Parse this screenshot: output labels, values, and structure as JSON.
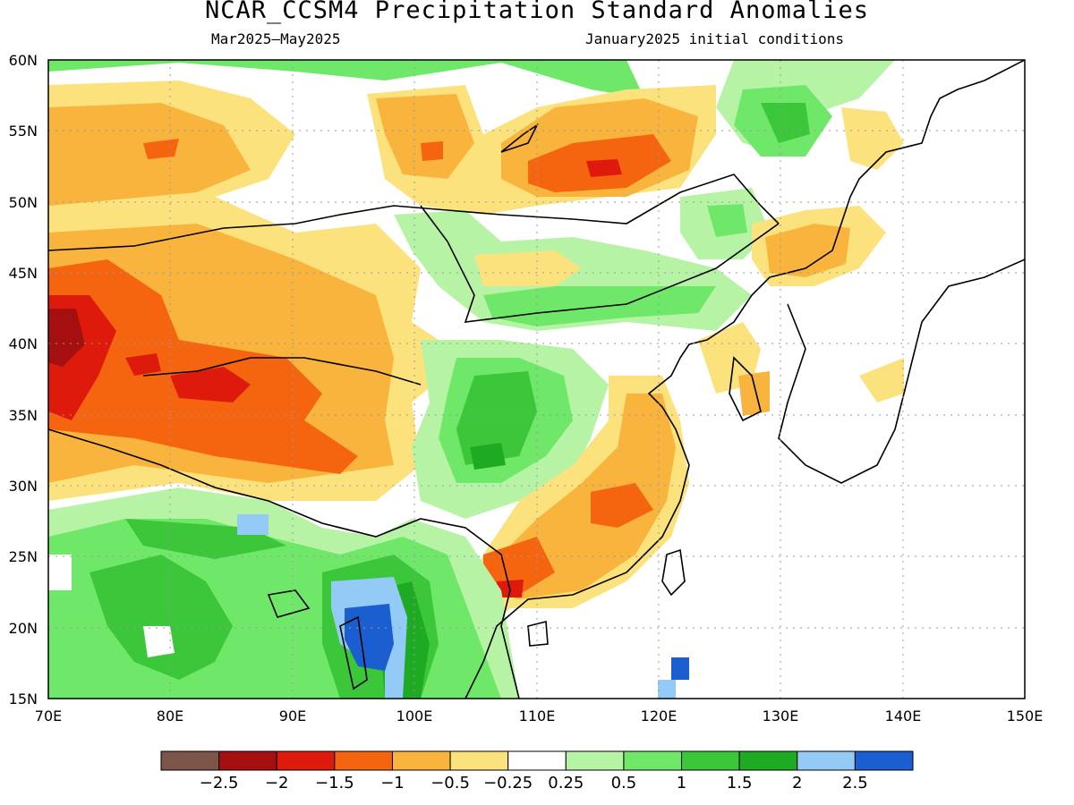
{
  "header": {
    "title": "NCAR_CCSM4 Precipitation Standard Anomalies",
    "subtitle_left": "Mar2025–May2025",
    "subtitle_right": "January2025 initial conditions"
  },
  "map": {
    "lat_labels": [
      "60N",
      "55N",
      "50N",
      "45N",
      "40N",
      "35N",
      "30N",
      "25N",
      "20N",
      "15N"
    ],
    "lon_labels": [
      "70E",
      "80E",
      "90E",
      "100E",
      "110E",
      "120E",
      "130E",
      "140E",
      "150E"
    ]
  },
  "colorbar": {
    "colors": [
      "#7a5548",
      "#a50f0f",
      "#dd1a0b",
      "#f56510",
      "#f9b43d",
      "#fbe27c",
      "#ffffff",
      "#b6f3a5",
      "#6fe86a",
      "#3cc73b",
      "#1faa24",
      "#94cbf6",
      "#1a5ed0"
    ],
    "labels": [
      "−2.5",
      "−2",
      "−1.5",
      "−1",
      "−0.5",
      "−0.25",
      "0.25",
      "0.5",
      "1",
      "1.5",
      "2",
      "2.5"
    ]
  },
  "palette": {
    "orange_light": "#fbe27c",
    "orange": "#f9b43d",
    "orange_dark": "#f56510",
    "red": "#dd1a0b",
    "dark_red": "#a50f0f",
    "green_light": "#b6f3a5",
    "green": "#6fe86a",
    "green_mid": "#3cc73b",
    "green_dark": "#1faa24",
    "blue_light": "#94cbf6",
    "blue": "#1a5ed0"
  }
}
